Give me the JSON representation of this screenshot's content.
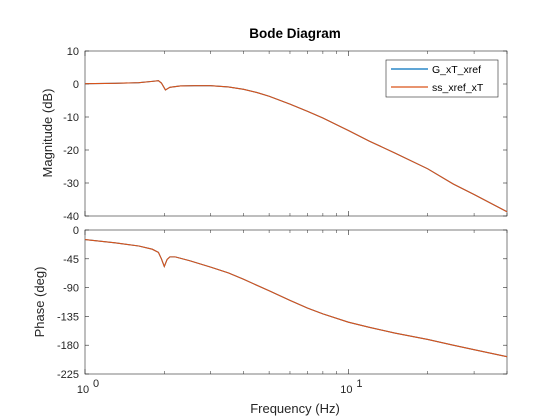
{
  "chart_data": {
    "type": "line",
    "title": "Bode Diagram",
    "xlabel": "Frequency  (Hz)",
    "xscale": "log",
    "xlim": [
      1,
      40
    ],
    "x_ticks": [
      {
        "value": 1,
        "base": "10",
        "exp": "0"
      },
      {
        "value": 10,
        "base": "10",
        "exp": "1"
      }
    ],
    "grid": false,
    "legend_position": "top-right",
    "colors": {
      "G_xT_xref": "#0072bd",
      "ss_xref_xT": "#d95319"
    },
    "series": [
      {
        "name": "G_xT_xref",
        "color": "#0072bd"
      },
      {
        "name": "ss_xref_xT",
        "color": "#d95319"
      }
    ],
    "magnitude": {
      "ylabel": "Magnitude (dB)",
      "ylim": [
        -40,
        10
      ],
      "y_ticks": [
        "10",
        "0",
        "-10",
        "-20",
        "-30",
        "-40"
      ],
      "x": [
        1,
        1.3,
        1.6,
        1.8,
        1.9,
        1.95,
        2.0,
        2.02,
        2.05,
        2.1,
        2.3,
        2.6,
        3.0,
        3.5,
        4.0,
        4.5,
        5.0,
        6.0,
        7.0,
        8.0,
        10.0,
        12.0,
        15.0,
        20.0,
        25.0,
        30.0,
        40.0
      ],
      "G_xT_xref": [
        0.1,
        0.2,
        0.4,
        0.8,
        1.0,
        0.3,
        -1.2,
        -1.8,
        -1.5,
        -1.0,
        -0.6,
        -0.5,
        -0.5,
        -0.9,
        -1.6,
        -2.6,
        -3.7,
        -6.1,
        -8.3,
        -10.3,
        -14.1,
        -17.3,
        -20.9,
        -25.7,
        -30.3,
        -33.5,
        -38.7
      ],
      "ss_xref_xT": [
        0.1,
        0.2,
        0.4,
        0.8,
        1.0,
        0.3,
        -1.2,
        -1.8,
        -1.5,
        -1.0,
        -0.6,
        -0.5,
        -0.5,
        -0.9,
        -1.6,
        -2.6,
        -3.7,
        -6.1,
        -8.3,
        -10.3,
        -14.1,
        -17.3,
        -20.9,
        -25.7,
        -30.3,
        -33.5,
        -38.7
      ]
    },
    "phase": {
      "ylabel": "Phase (deg)",
      "ylim": [
        -225,
        0
      ],
      "y_ticks": [
        "0",
        "-45",
        "-90",
        "-135",
        "-180",
        "-225"
      ],
      "x": [
        1,
        1.3,
        1.6,
        1.8,
        1.9,
        1.95,
        2.0,
        2.05,
        2.1,
        2.2,
        2.5,
        3.0,
        3.5,
        4.0,
        5.0,
        6.0,
        7.0,
        8.0,
        10.0,
        12.0,
        15.0,
        20.0,
        25.0,
        30.0,
        40.0
      ],
      "G_xT_xref": [
        -15,
        -20,
        -25,
        -30,
        -35,
        -45,
        -57,
        -46,
        -42,
        -42,
        -48,
        -58,
        -67,
        -77,
        -95,
        -110,
        -122,
        -131,
        -144,
        -152,
        -161,
        -171,
        -180,
        -187,
        -198
      ],
      "ss_xref_xT": [
        -15,
        -20,
        -25,
        -30,
        -35,
        -45,
        -57,
        -46,
        -42,
        -42,
        -48,
        -58,
        -67,
        -77,
        -95,
        -110,
        -122,
        -131,
        -144,
        -152,
        -161,
        -171,
        -180,
        -187,
        -198
      ]
    }
  }
}
